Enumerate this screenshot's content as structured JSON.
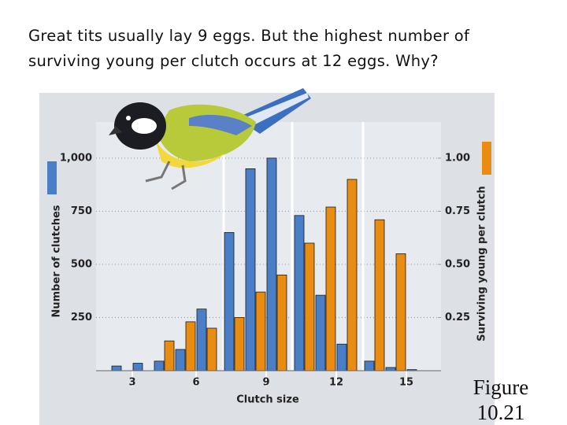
{
  "title_lines": [
    "Great tits usually lay 9 eggs. But the highest number of",
    "surviving young per clutch occurs at 12 eggs. Why?"
  ],
  "figure_label": "Figure 10.21",
  "chart_data": {
    "type": "bar",
    "xlabel": "Clutch size",
    "ylabel": "Number of clutches",
    "y2label": "Surviving young per clutch",
    "categories": [
      null,
      "3",
      null,
      null,
      "6",
      null,
      null,
      "9",
      null,
      null,
      "12",
      null,
      null,
      "15"
    ],
    "series": [
      {
        "color": "#4a7fc8",
        "values": [
          22,
          35,
          45,
          100,
          290,
          650,
          950,
          1000,
          730,
          355,
          125,
          45,
          15,
          5
        ]
      },
      {
        "color": "#ea8c12",
        "axis": "y2",
        "values": [
          null,
          null,
          0.14,
          0.23,
          0.2,
          0.25,
          0.37,
          0.45,
          0.6,
          0.77,
          0.9,
          0.71,
          0.55,
          null
        ]
      }
    ],
    "ylim": [
      0,
      1170
    ],
    "yticks": [
      250,
      500,
      750,
      {
        "value": 1000,
        "label": "1,000"
      }
    ],
    "y2lim": [
      0,
      1.17
    ],
    "y2ticks": [
      0.25,
      {
        "value": 0.5,
        "label": "0.50"
      },
      0.75,
      {
        "value": 1.0,
        "label": "1.00"
      }
    ],
    "grid": true
  }
}
